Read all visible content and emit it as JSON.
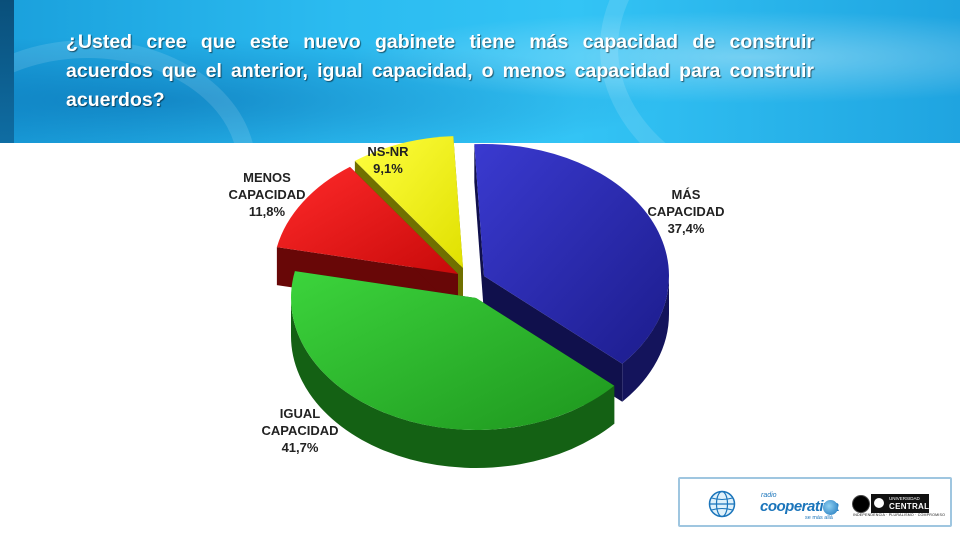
{
  "header": {
    "question": "¿Usted cree que este nuevo gabinete tiene más capacidad de construir acuerdos que el anterior, igual capacidad, o menos capacidad para construir acuerdos?"
  },
  "chart_data": {
    "type": "pie",
    "style": "3d-exploded",
    "title": "",
    "slices": [
      {
        "label_lines": [
          "MÁS",
          "CAPACIDAD"
        ],
        "value": 37.4,
        "value_text": "37,4%",
        "color": "#2424a8"
      },
      {
        "label_lines": [
          "IGUAL",
          "CAPACIDAD"
        ],
        "value": 41.7,
        "value_text": "41,7%",
        "color": "#24b024"
      },
      {
        "label_lines": [
          "MENOS",
          "CAPACIDAD"
        ],
        "value": 11.8,
        "value_text": "11,8%",
        "color": "#e81010"
      },
      {
        "label_lines": [
          "NS-NR"
        ],
        "value": 9.1,
        "value_text": "9,1%",
        "color": "#f8f800"
      }
    ]
  },
  "logos": {
    "radio_small": "radio",
    "radio_name": "cooperativa",
    "radio_tag": "se más allá",
    "university_top": "UNIVERSIDAD",
    "university_name": "CENTRAL",
    "university_tag": "INDEPENDENCIA · PLURALISMO · COMPROMISO"
  }
}
